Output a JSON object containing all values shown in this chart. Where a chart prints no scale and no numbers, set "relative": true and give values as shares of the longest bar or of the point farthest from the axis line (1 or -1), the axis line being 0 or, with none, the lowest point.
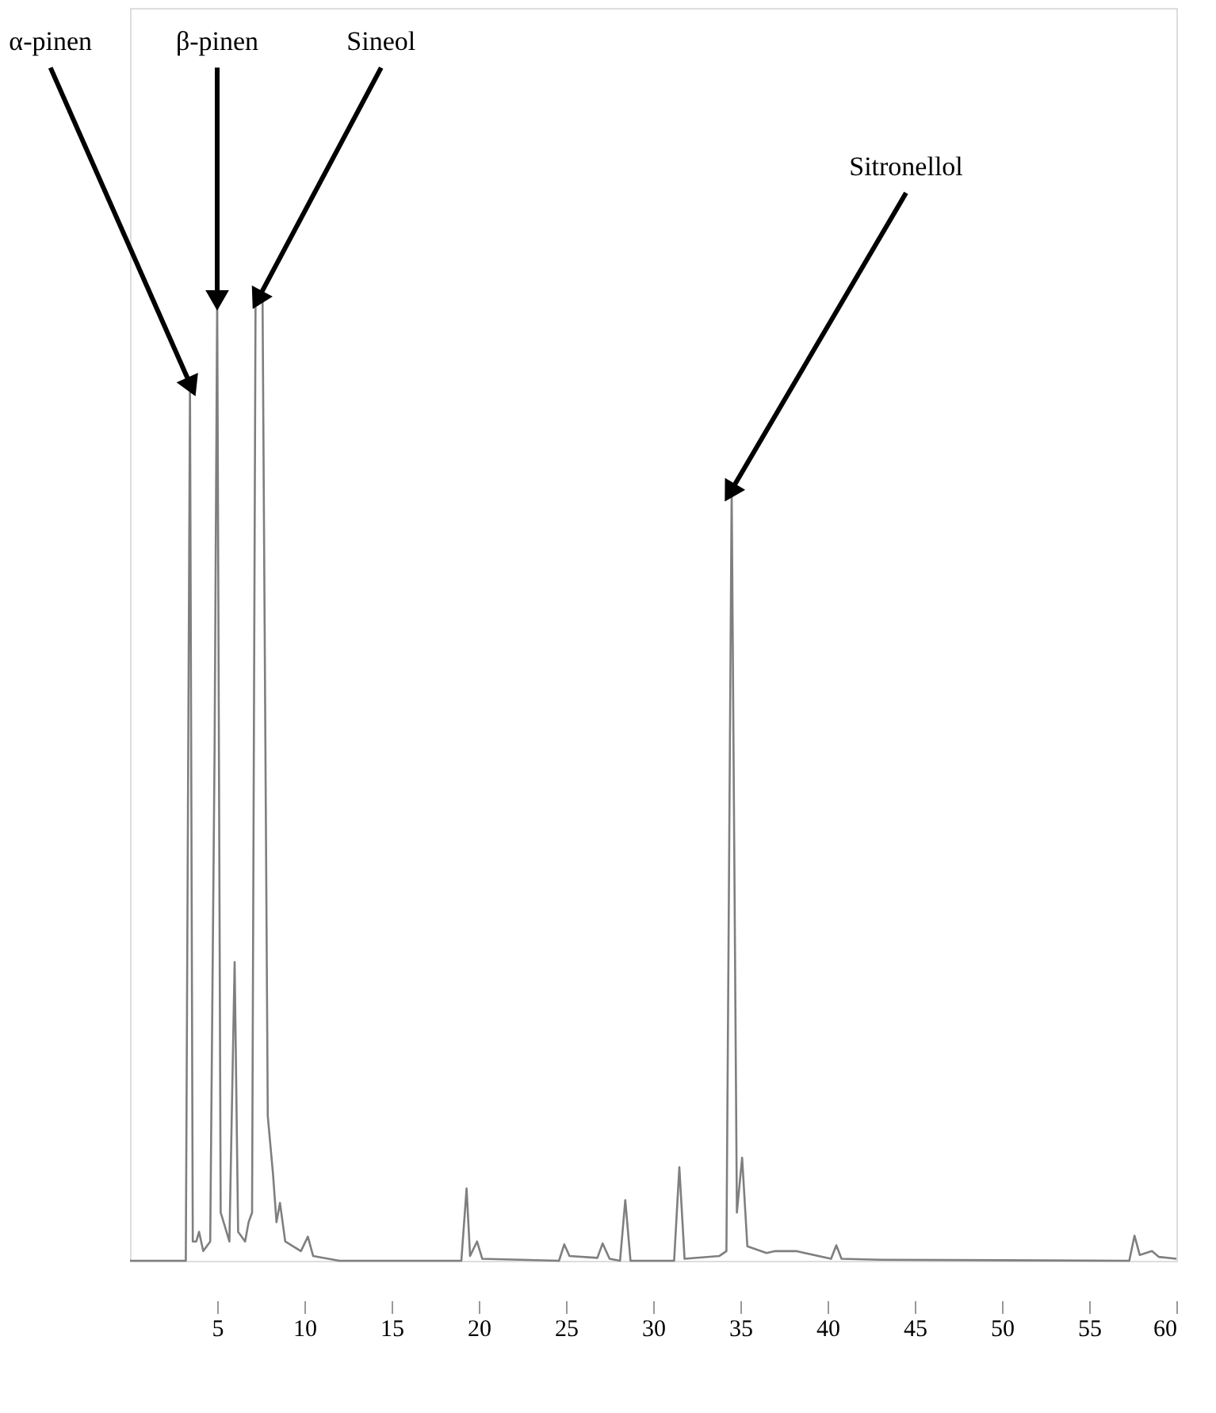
{
  "chart_data": {
    "type": "line",
    "relative": true,
    "color": "#7f7f7f",
    "x": [
      0,
      3.2,
      3.44,
      3.6,
      3.8,
      3.96,
      4.2,
      4.6,
      4.85,
      5.0,
      5.2,
      5.7,
      6.0,
      6.2,
      6.6,
      6.8,
      7.0,
      7.2,
      7.6,
      7.9,
      8.2,
      8.4,
      8.6,
      8.9,
      9.8,
      10.2,
      10.5,
      12,
      19.0,
      19.3,
      19.5,
      19.9,
      20.2,
      24.6,
      24.9,
      25.2,
      26.8,
      27.1,
      27.5,
      28.1,
      28.4,
      28.7,
      31.2,
      31.5,
      31.8,
      33.8,
      34.2,
      34.5,
      34.8,
      35.1,
      35.4,
      36.5,
      37,
      38.2,
      40.2,
      40.5,
      40.8,
      43,
      57.3,
      57.6,
      57.9,
      58.6,
      59,
      60
    ],
    "values": [
      0,
      0,
      0.91,
      0.02,
      0.02,
      0.03,
      0.01,
      0.02,
      0.53,
      1.0,
      0.05,
      0.02,
      0.31,
      0.03,
      0.02,
      0.04,
      0.05,
      1.0,
      1.0,
      0.15,
      0.09,
      0.04,
      0.06,
      0.02,
      0.01,
      0.025,
      0.005,
      0,
      0,
      0.075,
      0.005,
      0.02,
      0.002,
      0,
      0.017,
      0.005,
      0.003,
      0.018,
      0.002,
      0,
      0.063,
      0,
      0,
      0.097,
      0.002,
      0.005,
      0.01,
      0.8,
      0.05,
      0.107,
      0.015,
      0.008,
      0.01,
      0.01,
      0.002,
      0.016,
      0.002,
      0.001,
      0,
      0.026,
      0.006,
      0.01,
      0.004,
      0.002
    ],
    "xlim": [
      0,
      60
    ],
    "xticks": [
      5,
      10,
      15,
      20,
      25,
      30,
      35,
      40,
      45,
      50,
      55,
      60
    ],
    "grid": false,
    "marker": "none",
    "line_style": "solid",
    "annotations": [
      {
        "text": "α-pinen",
        "x": 3.44,
        "y": 0.91
      },
      {
        "text": "β-pinen",
        "x": 5.0,
        "y": 1.0
      },
      {
        "text": "Sineol",
        "x": 7.4,
        "y": 1.0
      },
      {
        "text": "Sitronellol",
        "x": 34.5,
        "y": 0.8
      }
    ]
  }
}
